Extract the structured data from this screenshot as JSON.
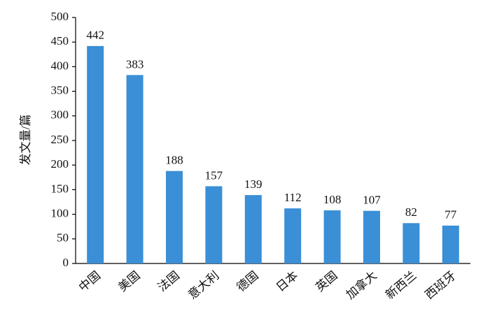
{
  "chart_data": {
    "type": "bar",
    "y_label": "发文量/篇",
    "categories": [
      "中国",
      "美国",
      "法国",
      "意大利",
      "德国",
      "日本",
      "英国",
      "加拿大",
      "新西兰",
      "西班牙"
    ],
    "values": [
      442,
      383,
      188,
      157,
      139,
      112,
      108,
      107,
      82,
      77
    ],
    "color": "#3a8fd6",
    "ylim": [
      0,
      500
    ],
    "yticks": [
      0,
      50,
      100,
      150,
      200,
      250,
      300,
      350,
      400,
      450,
      500
    ],
    "grid": false
  }
}
